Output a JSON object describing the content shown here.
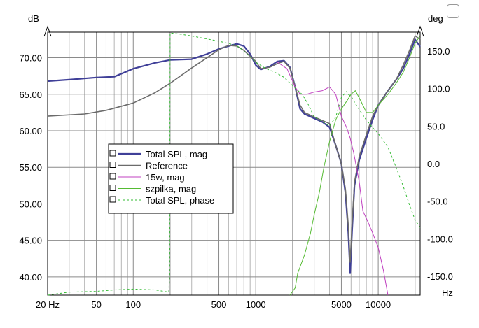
{
  "chart_data": {
    "type": "line",
    "y_unit_left": "dB",
    "y_unit_right": "deg",
    "x_unit": "Hz",
    "x_scale": "log",
    "xlim": [
      20,
      22000
    ],
    "ylim_left": [
      37.5,
      73.5
    ],
    "ylim_right": [
      -175,
      175
    ],
    "x_ticks": [
      {
        "value": 20,
        "label": "20 Hz"
      },
      {
        "value": 50,
        "label": "50"
      },
      {
        "value": 100,
        "label": "100"
      },
      {
        "value": 500,
        "label": "500"
      },
      {
        "value": 1000,
        "label": "1000"
      },
      {
        "value": 5000,
        "label": "5000"
      },
      {
        "value": 10000,
        "label": "10000"
      }
    ],
    "y_ticks_left": [
      "40.00",
      "45.00",
      "50.00",
      "55.00",
      "60.00",
      "65.00",
      "70.00"
    ],
    "y_ticks_right": [
      "-150.0",
      "-100.0",
      "-50.0",
      "0.0",
      "50.0",
      "100.0",
      "150.0"
    ],
    "grid": true,
    "legend_position": "center-left",
    "series": [
      {
        "name": "Total SPL, mag",
        "axis": "left",
        "color": "#3f3f98",
        "style": "solid-thick",
        "points": [
          [
            20,
            66.8
          ],
          [
            30,
            67.0
          ],
          [
            50,
            67.3
          ],
          [
            70,
            67.4
          ],
          [
            100,
            68.5
          ],
          [
            150,
            69.3
          ],
          [
            200,
            69.7
          ],
          [
            300,
            69.8
          ],
          [
            400,
            70.5
          ],
          [
            500,
            71.2
          ],
          [
            600,
            71.6
          ],
          [
            700,
            71.9
          ],
          [
            800,
            71.6
          ],
          [
            900,
            70.5
          ],
          [
            1000,
            69.0
          ],
          [
            1100,
            68.4
          ],
          [
            1300,
            68.8
          ],
          [
            1500,
            69.5
          ],
          [
            1700,
            69.6
          ],
          [
            1900,
            68.7
          ],
          [
            2100,
            66.0
          ],
          [
            2300,
            63.0
          ],
          [
            2500,
            62.3
          ],
          [
            3000,
            61.7
          ],
          [
            3500,
            61.2
          ],
          [
            4000,
            60.5
          ],
          [
            4500,
            58.0
          ],
          [
            5000,
            55.5
          ],
          [
            5400,
            51.5
          ],
          [
            5700,
            46.0
          ],
          [
            5900,
            40.5
          ],
          [
            6100,
            46.0
          ],
          [
            6400,
            52.5
          ],
          [
            7000,
            56.0
          ],
          [
            8000,
            59.0
          ],
          [
            9000,
            61.5
          ],
          [
            10000,
            63.5
          ],
          [
            12000,
            65.5
          ],
          [
            14000,
            67.0
          ],
          [
            16000,
            68.5
          ],
          [
            18000,
            70.5
          ],
          [
            20000,
            72.5
          ],
          [
            22000,
            71.5
          ]
        ]
      },
      {
        "name": "Reference",
        "axis": "left",
        "color": "#6b6b6b",
        "style": "solid",
        "points": [
          [
            20,
            62.0
          ],
          [
            40,
            62.3
          ],
          [
            60,
            62.8
          ],
          [
            100,
            63.8
          ],
          [
            150,
            65.2
          ],
          [
            200,
            66.5
          ],
          [
            300,
            68.6
          ],
          [
            400,
            70.0
          ],
          [
            500,
            71.1
          ],
          [
            600,
            71.7
          ],
          [
            700,
            71.6
          ],
          [
            800,
            71.0
          ],
          [
            1000,
            69.5
          ],
          [
            1100,
            68.5
          ],
          [
            1300,
            68.7
          ],
          [
            1500,
            69.2
          ],
          [
            1700,
            69.5
          ],
          [
            1900,
            68.6
          ],
          [
            2100,
            66.0
          ],
          [
            2300,
            63.5
          ],
          [
            2500,
            62.5
          ],
          [
            3000,
            61.9
          ],
          [
            3500,
            61.4
          ],
          [
            4000,
            61.0
          ],
          [
            4500,
            58.0
          ],
          [
            5000,
            55.5
          ],
          [
            5400,
            52.0
          ],
          [
            5700,
            47.0
          ],
          [
            5900,
            42.0
          ],
          [
            6100,
            47.0
          ],
          [
            6400,
            53.0
          ],
          [
            7000,
            56.5
          ],
          [
            8000,
            59.5
          ],
          [
            9000,
            62.0
          ],
          [
            10000,
            63.5
          ],
          [
            12000,
            65.5
          ],
          [
            14000,
            67.0
          ],
          [
            16000,
            69.0
          ],
          [
            18000,
            71.0
          ],
          [
            20000,
            73.0
          ],
          [
            22000,
            72.5
          ]
        ]
      },
      {
        "name": "15w, mag",
        "axis": "left",
        "color": "#c040c0",
        "style": "solid-thin",
        "points": [
          [
            1500,
            69.4
          ],
          [
            1800,
            68.5
          ],
          [
            2100,
            66.0
          ],
          [
            2300,
            65.0
          ],
          [
            2600,
            65.0
          ],
          [
            3000,
            65.3
          ],
          [
            3500,
            65.5
          ],
          [
            4000,
            66.0
          ],
          [
            4500,
            65.0
          ],
          [
            5000,
            62.0
          ],
          [
            5500,
            60.5
          ],
          [
            5900,
            59.0
          ],
          [
            6300,
            57.0
          ],
          [
            7000,
            53.0
          ],
          [
            7500,
            49.0
          ],
          [
            8000,
            48.0
          ],
          [
            9000,
            46.0
          ],
          [
            10000,
            44.0
          ],
          [
            11000,
            41.0
          ],
          [
            12000,
            37.5
          ]
        ]
      },
      {
        "name": "szpilka, mag",
        "axis": "left",
        "color": "#55bb33",
        "style": "solid-thin",
        "points": [
          [
            1900,
            37.5
          ],
          [
            2100,
            38.5
          ],
          [
            2200,
            40.5
          ],
          [
            2500,
            43.0
          ],
          [
            2800,
            46.0
          ],
          [
            3000,
            48.5
          ],
          [
            3300,
            51.5
          ],
          [
            3600,
            55.0
          ],
          [
            4000,
            58.5
          ],
          [
            4500,
            61.5
          ],
          [
            5000,
            63.0
          ],
          [
            5500,
            64.0
          ],
          [
            6000,
            65.0
          ],
          [
            6500,
            65.5
          ],
          [
            7000,
            64.5
          ],
          [
            7500,
            63.5
          ],
          [
            8000,
            62.5
          ],
          [
            9000,
            62.5
          ],
          [
            10000,
            63.5
          ],
          [
            12000,
            65.0
          ],
          [
            14000,
            66.5
          ],
          [
            16000,
            68.0
          ],
          [
            18000,
            70.0
          ],
          [
            20000,
            72.0
          ],
          [
            22000,
            73.0
          ]
        ]
      },
      {
        "name": "Total SPL, phase",
        "axis": "right",
        "color": "#33bb33",
        "style": "dashed",
        "points": [
          [
            20,
            -175
          ],
          [
            30,
            -171
          ],
          [
            50,
            -170
          ],
          [
            70,
            -168
          ],
          [
            100,
            -167
          ],
          [
            150,
            -168
          ],
          [
            195,
            -171
          ],
          [
            198,
            -150
          ],
          [
            200,
            174
          ],
          [
            250,
            172
          ],
          [
            300,
            170
          ],
          [
            400,
            166
          ],
          [
            500,
            163
          ],
          [
            600,
            160
          ],
          [
            700,
            157
          ],
          [
            800,
            150
          ],
          [
            900,
            142
          ],
          [
            1000,
            135
          ],
          [
            1200,
            127
          ],
          [
            1500,
            120
          ],
          [
            1700,
            115
          ],
          [
            2000,
            104
          ],
          [
            2400,
            92
          ],
          [
            2700,
            78
          ],
          [
            3000,
            62
          ],
          [
            3500,
            56
          ],
          [
            4000,
            50
          ],
          [
            4500,
            62
          ],
          [
            5000,
            88
          ],
          [
            5500,
            96
          ],
          [
            5700,
            92
          ],
          [
            6000,
            90
          ],
          [
            6500,
            80
          ],
          [
            7000,
            72
          ],
          [
            8000,
            58
          ],
          [
            9000,
            48
          ],
          [
            10000,
            40
          ],
          [
            12000,
            22
          ],
          [
            14000,
            -5
          ],
          [
            16000,
            -30
          ],
          [
            18000,
            -55
          ],
          [
            20000,
            -75
          ],
          [
            22000,
            -85
          ]
        ]
      }
    ]
  }
}
